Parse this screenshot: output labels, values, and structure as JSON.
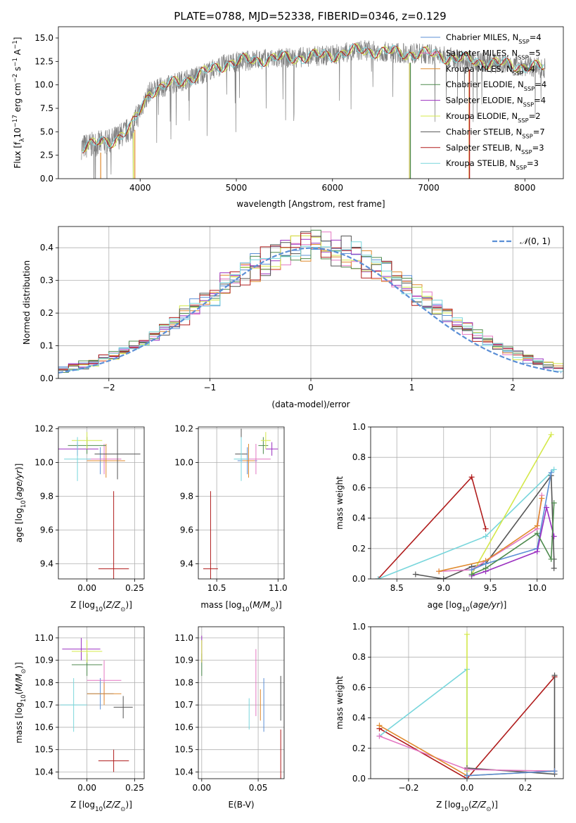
{
  "figure": {
    "title": "PLATE=0788, MJD=52338, FIBERID=0346, z=0.129"
  },
  "colors": {
    "Chabrier MILES": "#5b8fd6",
    "Salpeter MILES": "#e377c2",
    "Kroupa MILES": "#e08a2e",
    "Chabrier ELODIE": "#4d8a4d",
    "Salpeter ELODIE": "#9b30c0",
    "Kroupa ELODIE": "#d4e84a",
    "Chabrier STELIB": "#555555",
    "Salpeter STELIB": "#b01c1c",
    "Kroupa STELIB": "#78d6dc",
    "gaussian": "#5b8fd6"
  },
  "chart_data": [
    {
      "id": "spectrum",
      "type": "line",
      "xlabel": "wavelength [Angstrom, rest frame]",
      "ylabel": "Flux [f_λ 10^-17 erg cm^-2 s^-1 A^-1]",
      "xlim": [
        3150,
        8400
      ],
      "ylim": [
        0,
        16.2
      ],
      "xticks": [
        4000,
        5000,
        6000,
        7000,
        8000
      ],
      "yticks": [
        0.0,
        2.5,
        5.0,
        7.5,
        10.0,
        12.5,
        15.0
      ],
      "legend_position": "upper-right",
      "continuum": {
        "x": [
          3400,
          3700,
          3900,
          4100,
          4300,
          4600,
          4900,
          5200,
          5600,
          6000,
          6300,
          6700,
          7000,
          7300,
          7600,
          8000,
          8200
        ],
        "y": [
          3.4,
          4.0,
          5.3,
          9.3,
          10.0,
          11.0,
          12.3,
          12.7,
          12.9,
          13.2,
          13.7,
          13.4,
          13.3,
          12.8,
          12.4,
          12.0,
          11.8
        ]
      },
      "legend": [
        {
          "label": "Chabrier MILES, N_SSP=4",
          "main": "Chabrier MILES, N",
          "sub": "SSP",
          "tail": "=4"
        },
        {
          "label": "Salpeter MILES, N_SSP=5",
          "main": "Salpeter MILES, N",
          "sub": "SSP",
          "tail": "=5"
        },
        {
          "label": "Kroupa MILES, N_SSP=4",
          "main": "Kroupa MILES, N",
          "sub": "SSP",
          "tail": "=4"
        },
        {
          "label": "Chabrier ELODIE, N_SSP=4",
          "main": "Chabrier ELODIE, N",
          "sub": "SSP",
          "tail": "=4"
        },
        {
          "label": "Salpeter ELODIE, N_SSP=4",
          "main": "Salpeter ELODIE, N",
          "sub": "SSP",
          "tail": "=4"
        },
        {
          "label": "Kroupa ELODIE, N_SSP=2",
          "main": "Kroupa ELODIE, N",
          "sub": "SSP",
          "tail": "=2"
        },
        {
          "label": "Chabrier STELIB, N_SSP=7",
          "main": "Chabrier STELIB, N",
          "sub": "SSP",
          "tail": "=7"
        },
        {
          "label": "Salpeter STELIB, N_SSP=3",
          "main": "Salpeter STELIB, N",
          "sub": "SSP",
          "tail": "=3"
        },
        {
          "label": "Kroupa STELIB, N_SSP=3",
          "main": "Kroupa STELIB, N",
          "sub": "SSP",
          "tail": "=3"
        }
      ]
    },
    {
      "id": "residuals",
      "type": "line",
      "xlabel": "(data-model)/error",
      "ylabel": "Normed distribution",
      "xlim": [
        -2.5,
        2.5
      ],
      "ylim": [
        0,
        0.465
      ],
      "xticks": [
        -2,
        -1,
        0,
        1,
        2
      ],
      "yticks": [
        0.0,
        0.1,
        0.2,
        0.3,
        0.4
      ],
      "grid": true,
      "legend": {
        "label": "N(0,1)",
        "position": "upper-right"
      },
      "series_note": "step histograms, one per model, approximating N(0,1)"
    },
    {
      "id": "age_vs_Z",
      "type": "scatter",
      "xlabel": "Z [log10(Z/Z_sun)]",
      "ylabel": "age  [log10(age/yr)]",
      "xlim": [
        -0.15,
        0.3
      ],
      "ylim": [
        9.31,
        10.21
      ],
      "xticks": [
        0.0,
        0.25
      ],
      "yticks": [
        9.4,
        9.6,
        9.8,
        10.0,
        10.2
      ],
      "grid": true,
      "points": [
        {
          "model": "Chabrier MILES",
          "x": 0.07,
          "xerr": 0.07,
          "y": 10.01,
          "yerr": 0.08
        },
        {
          "model": "Salpeter MILES",
          "x": 0.09,
          "xerr": 0.09,
          "y": 10.02,
          "yerr": 0.09
        },
        {
          "model": "Kroupa MILES",
          "x": 0.1,
          "xerr": 0.1,
          "y": 10.01,
          "yerr": 0.1
        },
        {
          "model": "Chabrier ELODIE",
          "x": 0.0,
          "xerr": 0.1,
          "y": 10.1,
          "yerr": 0.05
        },
        {
          "model": "Salpeter ELODIE",
          "x": -0.05,
          "xerr": 0.11,
          "y": 10.08,
          "yerr": 0.04
        },
        {
          "model": "Kroupa ELODIE",
          "x": 0.0,
          "xerr": 0.08,
          "y": 10.13,
          "yerr": 0.05
        },
        {
          "model": "Chabrier STELIB",
          "x": 0.16,
          "xerr": 0.12,
          "y": 10.05,
          "yerr": 0.15
        },
        {
          "model": "Salpeter STELIB",
          "x": 0.14,
          "xerr": 0.08,
          "y": 9.37,
          "yerr": 0.46
        },
        {
          "model": "Kroupa STELIB",
          "x": -0.05,
          "xerr": 0.07,
          "y": 10.02,
          "yerr": 0.13
        }
      ]
    },
    {
      "id": "age_vs_mass",
      "type": "scatter",
      "xlabel": "mass [log10(M/M_sun)]",
      "ylabel": "",
      "xlim": [
        10.35,
        11.05
      ],
      "ylim": [
        9.31,
        10.21
      ],
      "xticks": [
        10.5,
        11.0
      ],
      "yticks": [
        9.4,
        9.6,
        9.8,
        10.0,
        10.2
      ],
      "grid": true,
      "points": [
        {
          "model": "Chabrier MILES",
          "x": 10.75,
          "xerr": 0.08,
          "y": 10.01,
          "yerr": 0.08
        },
        {
          "model": "Salpeter MILES",
          "x": 10.82,
          "xerr": 0.12,
          "y": 10.02,
          "yerr": 0.09
        },
        {
          "model": "Kroupa MILES",
          "x": 10.76,
          "xerr": 0.05,
          "y": 10.01,
          "yerr": 0.1
        },
        {
          "model": "Chabrier ELODIE",
          "x": 10.88,
          "xerr": 0.04,
          "y": 10.1,
          "yerr": 0.05
        },
        {
          "model": "Salpeter ELODIE",
          "x": 10.95,
          "xerr": 0.05,
          "y": 10.08,
          "yerr": 0.04
        },
        {
          "model": "Kroupa ELODIE",
          "x": 10.9,
          "xerr": 0.04,
          "y": 10.13,
          "yerr": 0.05
        },
        {
          "model": "Chabrier STELIB",
          "x": 10.7,
          "xerr": 0.05,
          "y": 10.05,
          "yerr": 0.15
        },
        {
          "model": "Salpeter STELIB",
          "x": 10.45,
          "xerr": 0.06,
          "y": 9.37,
          "yerr": 0.46
        },
        {
          "model": "Kroupa STELIB",
          "x": 10.7,
          "xerr": 0.06,
          "y": 10.02,
          "yerr": 0.13
        }
      ]
    },
    {
      "id": "massweight_vs_age",
      "type": "line",
      "xlabel": "age  [log10(age/yr)]",
      "ylabel": "mass weight",
      "xlim": [
        8.22,
        10.28
      ],
      "ylim": [
        0,
        1
      ],
      "xticks": [
        8.5,
        9.0,
        9.5,
        10.0
      ],
      "yticks": [
        0.0,
        0.2,
        0.4,
        0.6,
        0.8,
        1.0
      ],
      "grid": true,
      "series": [
        {
          "name": "Salpeter STELIB",
          "x": [
            8.3,
            9.3,
            9.45
          ],
          "y": [
            0.0,
            0.67,
            0.33
          ]
        },
        {
          "name": "Kroupa STELIB",
          "x": [
            8.3,
            9.45,
            10.18
          ],
          "y": [
            0.0,
            0.28,
            0.72
          ]
        },
        {
          "name": "Chabrier STELIB",
          "x": [
            8.7,
            9.0,
            9.3,
            9.45,
            10.15,
            10.18,
            10.18
          ],
          "y": [
            0.03,
            0.0,
            0.08,
            0.1,
            0.68,
            0.13,
            0.07
          ]
        },
        {
          "name": "Kroupa ELODIE",
          "x": [
            9.3,
            10.15
          ],
          "y": [
            0.03,
            0.95
          ]
        },
        {
          "name": "Salpeter MILES",
          "x": [
            8.95,
            9.3,
            10.0,
            10.05
          ],
          "y": [
            0.05,
            0.06,
            0.33,
            0.55
          ]
        },
        {
          "name": "Kroupa MILES",
          "x": [
            8.95,
            9.45,
            10.0,
            10.05
          ],
          "y": [
            0.05,
            0.12,
            0.35,
            0.53
          ]
        },
        {
          "name": "Chabrier MILES",
          "x": [
            9.3,
            9.45,
            10.0,
            10.15
          ],
          "y": [
            0.06,
            0.1,
            0.2,
            0.7
          ]
        },
        {
          "name": "Salpeter ELODIE",
          "x": [
            9.3,
            9.45,
            10.0,
            10.1,
            10.18
          ],
          "y": [
            0.02,
            0.05,
            0.18,
            0.47,
            0.28
          ]
        },
        {
          "name": "Chabrier ELODIE",
          "x": [
            9.3,
            9.45,
            10.0,
            10.15,
            10.18
          ],
          "y": [
            0.03,
            0.07,
            0.3,
            0.13,
            0.5
          ]
        }
      ]
    },
    {
      "id": "mass_vs_Z",
      "type": "scatter",
      "xlabel": "Z [log10(Z/Z_sun)]",
      "ylabel": "mass [log10(M/M_sun)]",
      "xlim": [
        -0.15,
        0.3
      ],
      "ylim": [
        10.37,
        11.05
      ],
      "xticks": [
        0.0,
        0.25
      ],
      "yticks": [
        10.4,
        10.5,
        10.6,
        10.7,
        10.8,
        10.9,
        11.0
      ],
      "grid": true,
      "points": [
        {
          "model": "Chabrier MILES",
          "x": 0.07,
          "xerr": 0.07,
          "y": 10.75,
          "yerr": 0.07
        },
        {
          "model": "Salpeter MILES",
          "x": 0.09,
          "xerr": 0.09,
          "y": 10.81,
          "yerr": 0.09
        },
        {
          "model": "Kroupa MILES",
          "x": 0.09,
          "xerr": 0.09,
          "y": 10.75,
          "yerr": 0.05
        },
        {
          "model": "Chabrier ELODIE",
          "x": 0.0,
          "xerr": 0.08,
          "y": 10.88,
          "yerr": 0.05
        },
        {
          "model": "Salpeter ELODIE",
          "x": -0.03,
          "xerr": 0.1,
          "y": 10.95,
          "yerr": 0.05
        },
        {
          "model": "Kroupa ELODIE",
          "x": 0.0,
          "xerr": 0.08,
          "y": 10.94,
          "yerr": 0.05
        },
        {
          "model": "Chabrier STELIB",
          "x": 0.19,
          "xerr": 0.05,
          "y": 10.69,
          "yerr": 0.05
        },
        {
          "model": "Salpeter STELIB",
          "x": 0.14,
          "xerr": 0.08,
          "y": 10.45,
          "yerr": 0.05
        },
        {
          "model": "Kroupa STELIB",
          "x": -0.07,
          "xerr": 0.07,
          "y": 10.7,
          "yerr": 0.12
        }
      ]
    },
    {
      "id": "mass_vs_EBV",
      "type": "scatter",
      "xlabel": "E(B-V)",
      "ylabel": "",
      "xlim": [
        -0.003,
        0.073
      ],
      "ylim": [
        10.37,
        11.05
      ],
      "xticks": [
        0.0,
        0.05
      ],
      "yticks": [
        10.4,
        10.5,
        10.6,
        10.7,
        10.8,
        10.9,
        11.0
      ],
      "grid": true,
      "points": [
        {
          "model": "Chabrier MILES",
          "x": 0.055,
          "y": 10.7,
          "yerr": 0.12
        },
        {
          "model": "Salpeter MILES",
          "x": 0.048,
          "y": 10.8,
          "yerr": 0.15
        },
        {
          "model": "Kroupa MILES",
          "x": 0.052,
          "y": 10.7,
          "yerr": 0.07
        },
        {
          "model": "Chabrier ELODIE",
          "x": 0.0,
          "y": 10.88,
          "yerr": 0.05
        },
        {
          "model": "Salpeter ELODIE",
          "x": 0.0,
          "y": 10.95,
          "yerr": 0.06
        },
        {
          "model": "Kroupa ELODIE",
          "x": 0.0,
          "y": 10.94,
          "yerr": 0.05
        },
        {
          "model": "Chabrier STELIB",
          "x": 0.07,
          "y": 10.73,
          "yerr": 0.1
        },
        {
          "model": "Salpeter STELIB",
          "x": 0.07,
          "y": 10.45,
          "yerr": 0.14
        },
        {
          "model": "Kroupa STELIB",
          "x": 0.042,
          "y": 10.66,
          "yerr": 0.07
        }
      ]
    },
    {
      "id": "massweight_vs_Z",
      "type": "line",
      "xlabel": "Z [log10(Z/Z_sun)]",
      "ylabel": "mass weight",
      "xlim": [
        -0.33,
        0.33
      ],
      "ylim": [
        0,
        1
      ],
      "xticks": [
        -0.2,
        0.0,
        0.2
      ],
      "yticks": [
        0.0,
        0.2,
        0.4,
        0.6,
        0.8,
        1.0
      ],
      "grid": true,
      "series": [
        {
          "name": "Salpeter STELIB",
          "x": [
            -0.3,
            0.0,
            0.3
          ],
          "y": [
            0.33,
            0.0,
            0.67
          ]
        },
        {
          "name": "Kroupa STELIB",
          "x": [
            -0.3,
            0.0,
            0.0
          ],
          "y": [
            0.28,
            0.72,
            0.0
          ]
        },
        {
          "name": "Kroupa ELODIE",
          "x": [
            0.0,
            0.0
          ],
          "y": [
            0.05,
            0.95
          ]
        },
        {
          "name": "Chabrier STELIB",
          "x": [
            0.0,
            0.3,
            0.3
          ],
          "y": [
            0.07,
            0.03,
            0.68
          ]
        },
        {
          "name": "Salpeter MILES",
          "x": [
            -0.3,
            0.0,
            0.3
          ],
          "y": [
            0.28,
            0.06,
            0.05
          ]
        },
        {
          "name": "Kroupa MILES",
          "x": [
            -0.3,
            0.0,
            0.3
          ],
          "y": [
            0.35,
            0.02,
            0.05
          ]
        },
        {
          "name": "Chabrier MILES",
          "x": [
            0.0,
            0.3
          ],
          "y": [
            0.02,
            0.05
          ]
        }
      ]
    }
  ]
}
